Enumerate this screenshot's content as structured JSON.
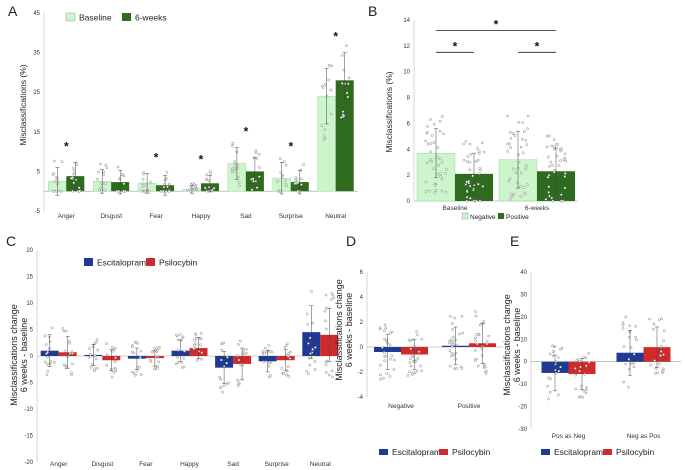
{
  "colors": {
    "baseline": "#ccf5cc",
    "sixweeks": "#2e6b1f",
    "negative": "#ccf5cc",
    "positive": "#2e6b1f",
    "escitalopram": "#1f3a93",
    "psilocybin": "#d12a2a"
  },
  "panels": {
    "a": "A",
    "b": "B",
    "c": "C",
    "d": "D",
    "e": "E"
  },
  "chart_data": [
    {
      "id": "A",
      "type": "bar",
      "ylabel": "Misclassifications (%)",
      "ylim": [
        -5,
        45
      ],
      "yticks": [
        -5,
        5,
        15,
        25,
        35,
        45
      ],
      "categories": [
        "Anger",
        "Disgust",
        "Fear",
        "Happy",
        "Sad",
        "Surprise",
        "Neutral"
      ],
      "series": [
        {
          "name": "Baseline",
          "values": [
            2.5,
            2.5,
            2.0,
            0.5,
            7.0,
            3.3,
            24.0
          ],
          "err": [
            3.5,
            3.0,
            2.5,
            1.0,
            4.0,
            4.0,
            7.0
          ]
        },
        {
          "name": "6-weeks",
          "values": [
            3.8,
            2.3,
            1.5,
            2.0,
            5.0,
            2.3,
            28.0
          ],
          "err": [
            3.5,
            3.0,
            2.5,
            2.0,
            3.5,
            3.0,
            7.0
          ]
        }
      ],
      "significance": [
        true,
        false,
        true,
        true,
        true,
        true,
        true
      ]
    },
    {
      "id": "B",
      "type": "bar",
      "ylabel": "Misclassifications (%)",
      "ylim": [
        0,
        14
      ],
      "yticks": [
        0,
        2,
        4,
        6,
        8,
        10,
        12,
        14
      ],
      "categories": [
        "Baseline",
        "6-weeks"
      ],
      "series": [
        {
          "name": "Negative",
          "values": [
            3.7,
            3.2
          ],
          "err": [
            1.9,
            2.2
          ]
        },
        {
          "name": "Positive",
          "values": [
            2.1,
            2.3
          ],
          "err": [
            1.6,
            1.8
          ]
        }
      ],
      "brackets": [
        {
          "from": [
            0,
            0
          ],
          "to": [
            1,
            1
          ],
          "y": 13.2,
          "label": "*"
        },
        {
          "from": [
            0,
            0
          ],
          "to": [
            0,
            1
          ],
          "y": 11.5,
          "label": "*"
        },
        {
          "from": [
            1,
            0
          ],
          "to": [
            1,
            1
          ],
          "y": 11.5,
          "label": "*"
        }
      ]
    },
    {
      "id": "C",
      "type": "bar",
      "ylabel": [
        "Misclassifications change",
        "6 weeks - baseline"
      ],
      "ylim": [
        -20,
        20
      ],
      "yticks": [
        -20,
        -15,
        -10,
        -5,
        0,
        5,
        10,
        15,
        20
      ],
      "categories": [
        "Anger",
        "Disgust",
        "Fear",
        "Happy",
        "Sad",
        "Surprise",
        "Neutral"
      ],
      "series": [
        {
          "name": "Escitalopram",
          "values": [
            1.0,
            0.2,
            -0.5,
            1.0,
            -2.2,
            -1.0,
            4.5
          ],
          "err": [
            3.0,
            2.0,
            2.0,
            2.0,
            3.0,
            2.0,
            5.0
          ]
        },
        {
          "name": "Psilocybin",
          "values": [
            0.7,
            -0.8,
            -0.4,
            1.5,
            -1.5,
            -0.8,
            4.0
          ],
          "err": [
            3.0,
            2.0,
            1.5,
            2.0,
            3.0,
            2.0,
            5.0
          ]
        }
      ]
    },
    {
      "id": "D",
      "type": "bar",
      "ylabel": [
        "Misclassifications change",
        "6 weeks - baseline"
      ],
      "ylim": [
        -4,
        6
      ],
      "yticks": [
        -4,
        -2,
        0,
        2,
        4,
        6
      ],
      "categories": [
        "Negative",
        "Positive"
      ],
      "series": [
        {
          "name": "Escitalopram",
          "values": [
            -0.4,
            0.1
          ],
          "err": [
            1.4,
            1.5
          ]
        },
        {
          "name": "Psilocybin",
          "values": [
            -0.6,
            0.3
          ],
          "err": [
            1.2,
            1.6
          ]
        }
      ]
    },
    {
      "id": "E",
      "type": "bar",
      "ylabel": [
        "Misclassifications change",
        "6 weeks - baseline"
      ],
      "ylim": [
        -30,
        40
      ],
      "yticks": [
        -30,
        -20,
        -10,
        0,
        10,
        20,
        30,
        40
      ],
      "categories": [
        "Pos as Neg",
        "Neg as Pos"
      ],
      "series": [
        {
          "name": "Escitalopram",
          "values": [
            -5.0,
            4.0
          ],
          "err": [
            8.0,
            10.0
          ]
        },
        {
          "name": "Psilocybin",
          "values": [
            -5.5,
            6.5
          ],
          "err": [
            7.0,
            9.0
          ]
        }
      ]
    }
  ]
}
